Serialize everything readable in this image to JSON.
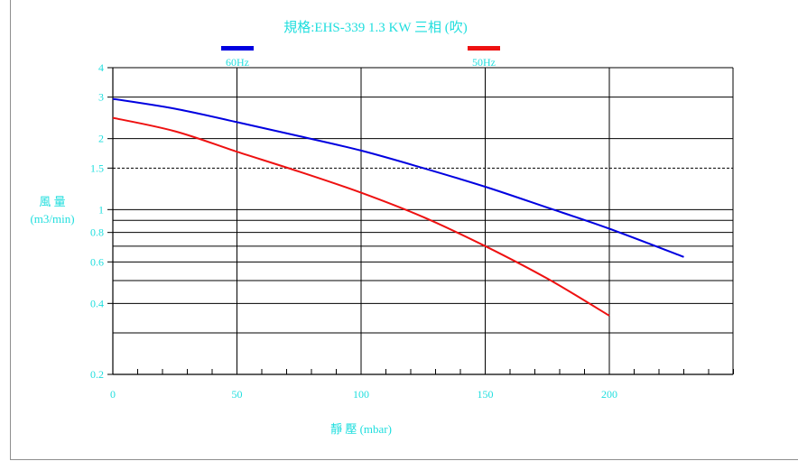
{
  "chart_data": {
    "type": "line",
    "title": "規格:EHS-339  1.3 KW 三相 (吹)",
    "xlabel": "靜 壓 (mbar)",
    "ylabel_line1": "風 量",
    "ylabel_line2": "(m3/min)",
    "xlim": [
      0,
      250
    ],
    "ylim": [
      0.2,
      4
    ],
    "yscale": "log",
    "x_ticks": [
      0,
      50,
      100,
      150,
      200
    ],
    "x_tick_labels": [
      "0",
      "50",
      "100",
      "150",
      "200"
    ],
    "y_tick_labels": [
      {
        "v": 4,
        "t": "4"
      },
      {
        "v": 3,
        "t": "3"
      },
      {
        "v": 2,
        "t": "2"
      },
      {
        "v": 1.5,
        "t": "1.5"
      },
      {
        "v": 1,
        "t": "1"
      },
      {
        "v": 0.8,
        "t": "0.8"
      },
      {
        "v": 0.6,
        "t": "0.6"
      },
      {
        "v": 0.4,
        "t": "0.4"
      },
      {
        "v": 0.2,
        "t": "0.2"
      }
    ],
    "y_gridlines": [
      4,
      3,
      2,
      1,
      0.9,
      0.8,
      0.7,
      0.6,
      0.5,
      0.4,
      0.3
    ],
    "y_dashed": [
      1.5
    ],
    "grid": true,
    "legend_position": "top",
    "series": [
      {
        "name": "60Hz",
        "color": "#0000e0",
        "x": [
          0,
          25,
          50,
          75,
          100,
          125,
          150,
          175,
          200,
          230
        ],
        "y": [
          2.95,
          2.68,
          2.35,
          2.05,
          1.78,
          1.5,
          1.25,
          1.02,
          0.83,
          0.63
        ]
      },
      {
        "name": "50Hz",
        "color": "#ee1111",
        "x": [
          0,
          25,
          50,
          75,
          100,
          125,
          150,
          175,
          200
        ],
        "y": [
          2.45,
          2.15,
          1.76,
          1.45,
          1.18,
          0.93,
          0.7,
          0.51,
          0.355
        ]
      }
    ]
  },
  "colors": {
    "text": "#1fdede",
    "grid": "#000000",
    "frame": "#8f8f8f"
  }
}
